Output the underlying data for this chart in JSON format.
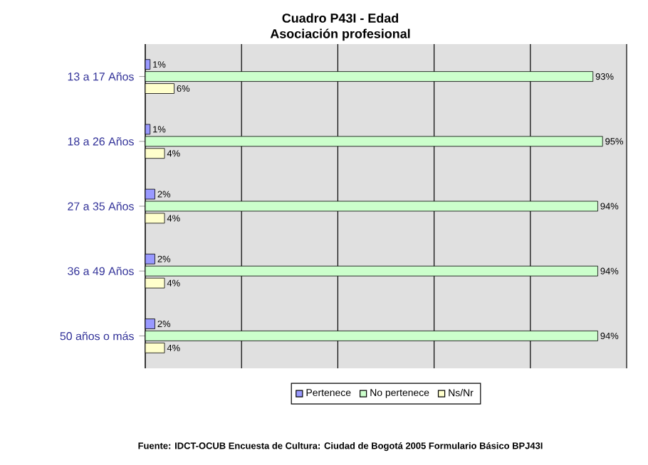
{
  "chart_data": {
    "type": "bar",
    "orientation": "horizontal",
    "title": "Cuadro P43I - Edad",
    "subtitle": "Asociación profesional",
    "categories": [
      "13 a 17 Años",
      "18 a 26 Años",
      "27 a 35 Años",
      "36 a 49 Años",
      "50 años o más"
    ],
    "series": [
      {
        "name": "Pertenece",
        "color": "#9999ff",
        "values": [
          1,
          1,
          2,
          2,
          2
        ],
        "value_labels": [
          "1%",
          "1%",
          "2%",
          "2%",
          "2%"
        ]
      },
      {
        "name": "No pertenece",
        "color": "#ccffcc",
        "values": [
          93,
          95,
          94,
          94,
          94
        ],
        "value_labels": [
          "93%",
          "95%",
          "94%",
          "94%",
          "94%"
        ]
      },
      {
        "name": "Ns/Nr",
        "color": "#ffffcc",
        "values": [
          6,
          4,
          4,
          4,
          4
        ],
        "value_labels": [
          "6%",
          "4%",
          "4%",
          "4%",
          "4%"
        ]
      }
    ],
    "xlim": [
      0,
      100
    ],
    "xticks": [
      {
        "value": 0,
        "label": null
      },
      {
        "value": 20,
        "label": null
      },
      {
        "value": 40,
        "label": null
      },
      {
        "value": 60,
        "label": null
      },
      {
        "value": 80,
        "label": null
      },
      {
        "value": 100,
        "label": null
      }
    ],
    "grid": "x",
    "legend": "bottom",
    "tick_labels": "y",
    "annotations": [
      "Fuente: IDCT-OCUB Encuesta de Cultura: Ciudad de Bogotá 2005 Formulario Básico BPJ43I"
    ]
  }
}
